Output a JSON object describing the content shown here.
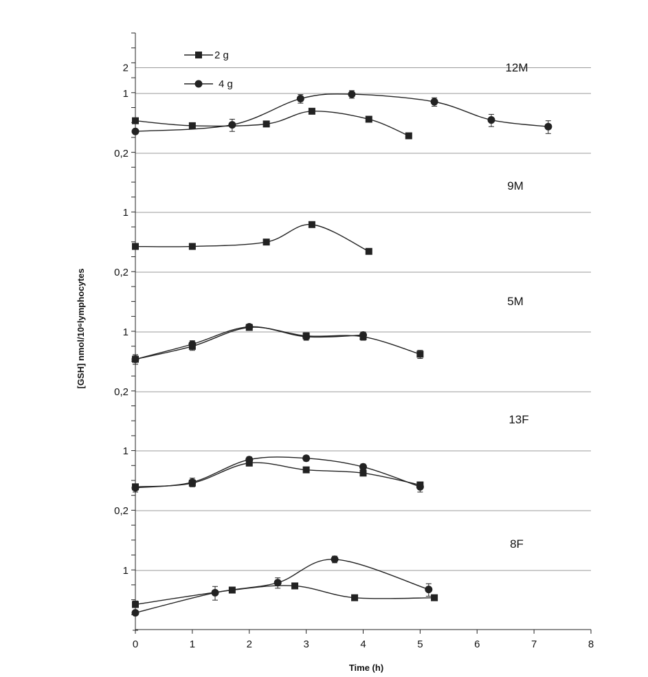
{
  "chart_data": {
    "type": "line",
    "xlabel": "Time (h)",
    "ylabel": "[GSH] nmol/10⁶lymphocytes",
    "xlim": [
      0,
      8
    ],
    "x_ticks": [
      "0",
      "1",
      "2",
      "3",
      "4",
      "5",
      "6",
      "7",
      "8"
    ],
    "legend": {
      "placement": "top-left",
      "entries": [
        {
          "label": "2 g",
          "marker": "square"
        },
        {
          "label": "4 g",
          "marker": "circle"
        }
      ]
    },
    "colors": {
      "line": "#222222",
      "grid": "#9a9a9a"
    },
    "panels": [
      {
        "name": "12M",
        "y_ticks": [
          {
            "value": 2,
            "label": "2"
          },
          {
            "value": 1,
            "label": "1"
          },
          {
            "value": 0.2,
            "label": "0,2"
          }
        ],
        "series": [
          {
            "name": "2 g",
            "marker": "square",
            "x": [
              0,
              1,
              2.3,
              3.1,
              4.1,
              4.8
            ],
            "y": [
              0.48,
              0.42,
              0.44,
              0.62,
              0.5,
              0.32
            ]
          },
          {
            "name": "4 g",
            "marker": "circle",
            "x": [
              0,
              1.7,
              2.9,
              3.8,
              5.25,
              6.25,
              7.25
            ],
            "y": [
              0.36,
              0.43,
              0.87,
              0.98,
              0.8,
              0.49,
              0.41
            ],
            "err": [
              0,
              0.07,
              0.1,
              0.1,
              0.09,
              0.08,
              0.07
            ]
          }
        ]
      },
      {
        "name": "9M",
        "y_ticks": [
          {
            "value": 1,
            "label": "1"
          },
          {
            "value": 0.2,
            "label": "0,2"
          }
        ],
        "series": [
          {
            "name": "2 g",
            "marker": "square",
            "x": [
              0,
              1,
              2.3,
              3.1,
              4.1
            ],
            "y": [
              0.4,
              0.4,
              0.45,
              0.72,
              0.35
            ]
          }
        ]
      },
      {
        "name": "5M",
        "y_ticks": [
          {
            "value": 1,
            "label": "1"
          },
          {
            "value": 0.2,
            "label": "0,2"
          }
        ],
        "series": [
          {
            "name": "2 g",
            "marker": "square",
            "x": [
              0,
              1,
              2,
              3,
              4,
              5
            ],
            "y": [
              0.48,
              0.68,
              1.13,
              0.9,
              0.88,
              0.55
            ],
            "err": [
              0.06,
              0.07,
              0.08,
              0.08,
              0.08,
              0.06
            ]
          },
          {
            "name": "4 g",
            "marker": "circle",
            "x": [
              0,
              1,
              2,
              3,
              4
            ],
            "y": [
              0.48,
              0.72,
              1.15,
              0.88,
              0.92
            ],
            "err": [
              0.06,
              0.07,
              0.08,
              0.08,
              0.08
            ]
          }
        ]
      },
      {
        "name": "13F",
        "y_ticks": [
          {
            "value": 1,
            "label": "1"
          },
          {
            "value": 0.2,
            "label": "0,2"
          }
        ],
        "series": [
          {
            "name": "2 g",
            "marker": "square",
            "x": [
              0,
              1,
              2,
              3,
              4,
              5
            ],
            "y": [
              0.38,
              0.42,
              0.72,
              0.6,
              0.55,
              0.4
            ]
          },
          {
            "name": "4 g",
            "marker": "circle",
            "x": [
              0,
              1,
              2,
              3,
              4,
              5
            ],
            "y": [
              0.37,
              0.43,
              0.79,
              0.82,
              0.65,
              0.38
            ],
            "err": [
              0.04,
              0.05,
              0.06,
              0.06,
              0.05,
              0.05
            ]
          }
        ]
      },
      {
        "name": "8F",
        "y_ticks": [
          {
            "value": 1,
            "label": "1"
          }
        ],
        "series": [
          {
            "name": "2 g",
            "marker": "square",
            "x": [
              0,
              1.7,
              2.8,
              3.85,
              5.25
            ],
            "y": [
              0.4,
              0.59,
              0.66,
              0.48,
              0.48
            ]
          },
          {
            "name": "4 g",
            "marker": "circle",
            "x": [
              0,
              1.4,
              2.5,
              3.5,
              5.15
            ],
            "y": [
              0.32,
              0.55,
              0.72,
              1.35,
              0.6
            ],
            "err": [
              0.12,
              0.1,
              0.1,
              0.12,
              0.1
            ]
          }
        ]
      }
    ]
  }
}
